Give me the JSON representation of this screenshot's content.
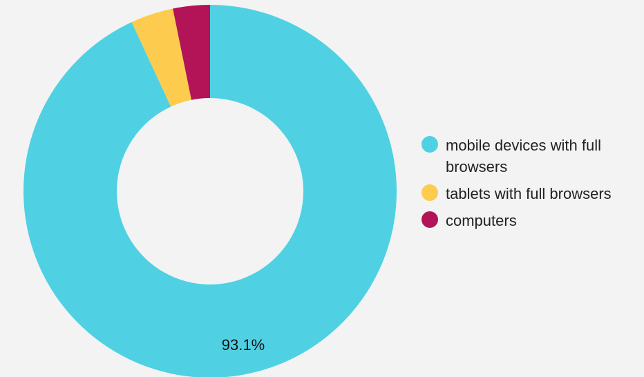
{
  "chart_data": {
    "type": "pie",
    "variant": "donut",
    "categories": [
      "mobile devices with full browsers",
      "tablets with full browsers",
      "computers"
    ],
    "values": [
      93.1,
      3.7,
      3.2
    ],
    "colors": [
      "#4fd1e3",
      "#fdcc4f",
      "#b31457"
    ],
    "data_labels": [
      "93.1%"
    ],
    "legend_position": "right"
  }
}
